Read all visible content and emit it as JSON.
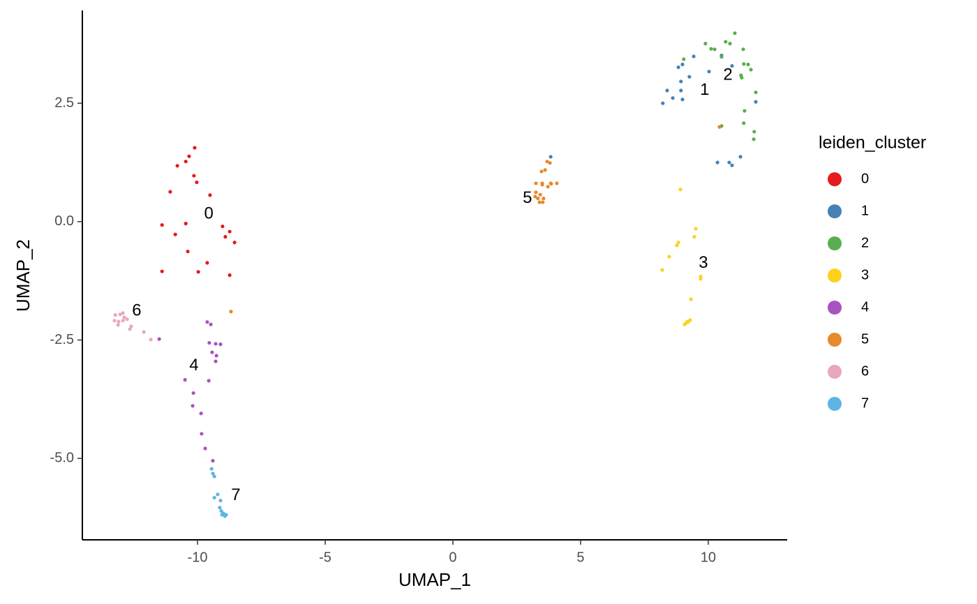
{
  "chart_data": {
    "type": "scatter",
    "xlabel": "UMAP_1",
    "ylabel": "UMAP_2",
    "legend_title": "leiden_cluster",
    "legend": "right",
    "xlim": [
      -14.51,
      13.09
    ],
    "ylim": [
      -6.72,
      4.46
    ],
    "xticks": [
      -10,
      -5,
      0,
      5,
      10
    ],
    "yticks": [
      2.5,
      {
        "value": 0,
        "label": "0.0"
      },
      -2.5,
      {
        "value": -5,
        "label": "-5.0"
      }
    ],
    "series": [
      {
        "name": "0",
        "color": "#e41a1c",
        "x": [
          -10.11,
          -10.33,
          -10.46,
          -10.79,
          -10.14,
          -10.03,
          -11.07,
          -9.51,
          -10.46,
          -11.39,
          -10.87,
          -9.02,
          -8.74,
          -8.91,
          -8.55,
          -10.38,
          -9.62,
          -9.97,
          -11.39,
          -8.74
        ],
        "y": [
          1.56,
          1.38,
          1.27,
          1.18,
          0.97,
          0.83,
          0.63,
          0.56,
          -0.04,
          -0.07,
          -0.27,
          -0.1,
          -0.21,
          -0.32,
          -0.44,
          -0.63,
          -0.87,
          -1.06,
          -1.05,
          -1.13
        ]
      },
      {
        "name": "1",
        "color": "#4682b4",
        "x": [
          8.83,
          8.99,
          9.43,
          10.03,
          10.52,
          9.26,
          8.93,
          10.93,
          8.39,
          8.22,
          8.61,
          8.93,
          8.99,
          9.86,
          11.86,
          10.44,
          10.36,
          10.82,
          10.93,
          11.26,
          3.83
        ],
        "y": [
          3.26,
          3.32,
          3.49,
          3.17,
          3.51,
          3.06,
          2.96,
          3.29,
          2.77,
          2.5,
          2.61,
          2.77,
          2.58,
          2.77,
          2.53,
          2.0,
          1.25,
          1.25,
          1.19,
          1.37,
          1.37
        ]
      },
      {
        "name": "2",
        "color": "#5aae4f",
        "x": [
          9.89,
          10.11,
          10.25,
          11.04,
          10.68,
          10.85,
          11.37,
          9.04,
          10.52,
          11.39,
          11.56,
          11.67,
          11.28,
          11.31,
          11.86,
          11.42,
          11.39,
          11.8,
          11.78,
          10.52
        ],
        "y": [
          3.76,
          3.65,
          3.64,
          3.98,
          3.8,
          3.76,
          3.64,
          3.43,
          3.48,
          3.33,
          3.32,
          3.21,
          3.09,
          3.04,
          2.73,
          2.34,
          2.08,
          1.9,
          1.74,
          2.02
        ]
      },
      {
        "name": "3",
        "color": "#fdd21e",
        "x": [
          8.91,
          9.51,
          9.45,
          8.83,
          8.77,
          8.47,
          8.2,
          9.7,
          9.7,
          9.32,
          9.29,
          9.21,
          9.13,
          9.07,
          9.18
        ],
        "y": [
          0.68,
          -0.15,
          -0.32,
          -0.44,
          -0.5,
          -0.74,
          -1.02,
          -1.16,
          -1.21,
          -1.64,
          -2.08,
          -2.12,
          -2.14,
          -2.17,
          -2.11
        ]
      },
      {
        "name": "4",
        "color": "#a953c0",
        "x": [
          -9.62,
          -9.48,
          -9.54,
          -9.29,
          -9.1,
          -9.43,
          -9.26,
          -9.29,
          -10.49,
          -9.56,
          -10.16,
          -10.19,
          -9.86,
          -9.84,
          -9.7,
          -9.4,
          -11.5
        ],
        "y": [
          -2.12,
          -2.17,
          -2.56,
          -2.58,
          -2.59,
          -2.76,
          -2.83,
          -2.95,
          -3.34,
          -3.36,
          -3.62,
          -3.89,
          -4.05,
          -4.48,
          -4.79,
          -5.05,
          -2.48
        ]
      },
      {
        "name": "5",
        "color": "#e8892a",
        "x": [
          3.69,
          3.8,
          3.61,
          3.47,
          3.25,
          3.5,
          3.83,
          4.07,
          3.25,
          3.42,
          3.5,
          3.72,
          3.85,
          3.22,
          3.33,
          3.55,
          3.39,
          3.52,
          -8.69,
          10.44
        ],
        "y": [
          1.27,
          1.24,
          1.09,
          1.06,
          0.81,
          0.81,
          0.81,
          0.81,
          0.62,
          0.57,
          0.78,
          0.74,
          0.8,
          0.53,
          0.49,
          0.49,
          0.41,
          0.41,
          -1.9,
          2.0
        ]
      },
      {
        "name": "6",
        "color": "#e8a8bc",
        "x": [
          -13.22,
          -13.03,
          -12.92,
          -12.87,
          -13.25,
          -13.09,
          -12.92,
          -12.76,
          -13.11,
          -12.6,
          -12.65,
          -12.1,
          -11.83
        ],
        "y": [
          -1.97,
          -1.96,
          -1.93,
          -2.02,
          -2.09,
          -2.11,
          -2.09,
          -2.06,
          -2.18,
          -2.21,
          -2.27,
          -2.33,
          -2.49
        ]
      },
      {
        "name": "7",
        "color": "#5db4e5",
        "x": [
          -9.45,
          -9.4,
          -9.34,
          -9.21,
          -9.34,
          -9.1,
          -9.13,
          -9.07,
          -8.99,
          -8.93,
          -9.04,
          -8.88
        ],
        "y": [
          -5.22,
          -5.32,
          -5.38,
          -5.76,
          -5.83,
          -5.89,
          -6.04,
          -6.11,
          -6.16,
          -6.22,
          -6.19,
          -6.19
        ]
      }
    ],
    "annotations": [
      {
        "text": "0",
        "x": -9.56,
        "y": 0.16
      },
      {
        "text": "1",
        "x": 9.86,
        "y": 2.77
      },
      {
        "text": "2",
        "x": 10.77,
        "y": 3.09
      },
      {
        "text": "3",
        "x": 9.81,
        "y": -0.88
      },
      {
        "text": "4",
        "x": -10.14,
        "y": -3.05
      },
      {
        "text": "5",
        "x": 2.92,
        "y": 0.49
      },
      {
        "text": "6",
        "x": -12.38,
        "y": -1.89
      },
      {
        "text": "7",
        "x": -8.5,
        "y": -5.79
      }
    ]
  }
}
